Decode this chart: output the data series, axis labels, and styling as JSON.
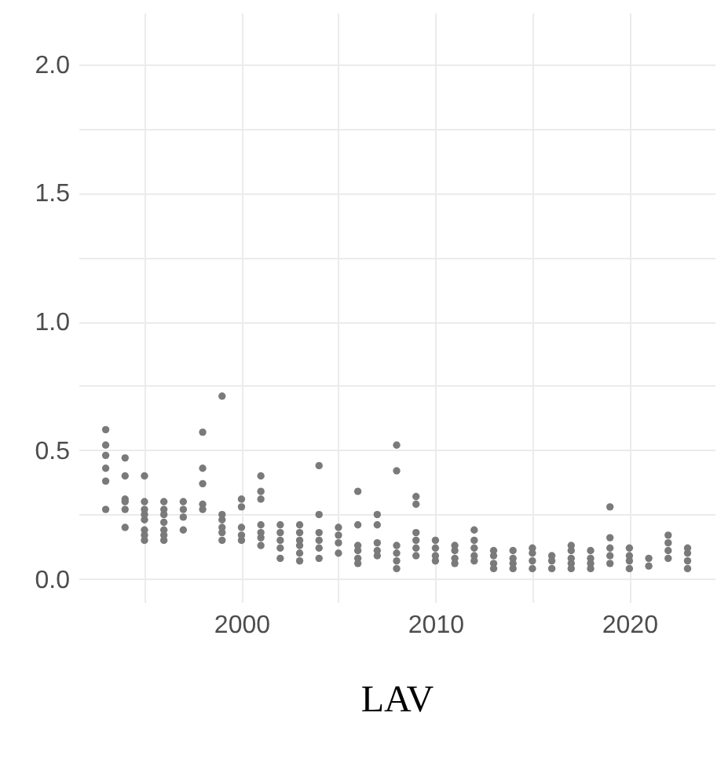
{
  "chart_data": {
    "type": "scatter",
    "xlabel": "LAV",
    "x": [
      1993,
      1993,
      1993,
      1993,
      1993,
      1993,
      1994,
      1994,
      1994,
      1994,
      1994,
      1994,
      1995,
      1995,
      1995,
      1995,
      1995,
      1995,
      1995,
      1995,
      1996,
      1996,
      1996,
      1996,
      1996,
      1996,
      1996,
      1997,
      1997,
      1997,
      1997,
      1998,
      1998,
      1998,
      1998,
      1998,
      1999,
      1999,
      1999,
      1999,
      1999,
      1999,
      2000,
      2000,
      2000,
      2000,
      2000,
      2001,
      2001,
      2001,
      2001,
      2001,
      2001,
      2001,
      2002,
      2002,
      2002,
      2002,
      2002,
      2003,
      2003,
      2003,
      2003,
      2003,
      2003,
      2004,
      2004,
      2004,
      2004,
      2004,
      2004,
      2005,
      2005,
      2005,
      2005,
      2006,
      2006,
      2006,
      2006,
      2006,
      2006,
      2007,
      2007,
      2007,
      2007,
      2007,
      2008,
      2008,
      2008,
      2008,
      2008,
      2008,
      2009,
      2009,
      2009,
      2009,
      2009,
      2009,
      2010,
      2010,
      2010,
      2010,
      2011,
      2011,
      2011,
      2011,
      2012,
      2012,
      2012,
      2012,
      2012,
      2013,
      2013,
      2013,
      2013,
      2014,
      2014,
      2014,
      2014,
      2015,
      2015,
      2015,
      2015,
      2016,
      2016,
      2016,
      2017,
      2017,
      2017,
      2017,
      2017,
      2018,
      2018,
      2018,
      2018,
      2019,
      2019,
      2019,
      2019,
      2019,
      2020,
      2020,
      2020,
      2020,
      2021,
      2021,
      2022,
      2022,
      2022,
      2022,
      2023,
      2023,
      2023,
      2023
    ],
    "series": [
      {
        "color": "#7a7a7a",
        "values": [
          0.58,
          0.52,
          0.48,
          0.43,
          0.38,
          0.27,
          0.47,
          0.4,
          0.31,
          0.3,
          0.27,
          0.2,
          0.4,
          0.3,
          0.27,
          0.25,
          0.23,
          0.19,
          0.17,
          0.15,
          0.3,
          0.27,
          0.25,
          0.22,
          0.19,
          0.17,
          0.15,
          0.3,
          0.27,
          0.24,
          0.19,
          0.57,
          0.43,
          0.37,
          0.29,
          0.27,
          0.71,
          0.25,
          0.23,
          0.2,
          0.18,
          0.15,
          0.31,
          0.28,
          0.2,
          0.17,
          0.15,
          0.4,
          0.34,
          0.31,
          0.21,
          0.18,
          0.16,
          0.13,
          0.21,
          0.18,
          0.15,
          0.12,
          0.08,
          0.21,
          0.18,
          0.15,
          0.13,
          0.1,
          0.07,
          0.44,
          0.25,
          0.18,
          0.15,
          0.12,
          0.08,
          0.2,
          0.17,
          0.14,
          0.1,
          0.34,
          0.21,
          0.13,
          0.11,
          0.08,
          0.06,
          0.25,
          0.21,
          0.14,
          0.11,
          0.09,
          0.52,
          0.42,
          0.13,
          0.1,
          0.07,
          0.04,
          0.32,
          0.29,
          0.18,
          0.15,
          0.12,
          0.09,
          0.15,
          0.12,
          0.09,
          0.07,
          0.13,
          0.11,
          0.08,
          0.06,
          0.19,
          0.15,
          0.12,
          0.09,
          0.07,
          0.11,
          0.09,
          0.06,
          0.04,
          0.11,
          0.08,
          0.06,
          0.04,
          0.12,
          0.1,
          0.07,
          0.04,
          0.09,
          0.07,
          0.04,
          0.13,
          0.11,
          0.08,
          0.06,
          0.04,
          0.11,
          0.08,
          0.06,
          0.04,
          0.28,
          0.16,
          0.12,
          0.09,
          0.06,
          0.12,
          0.09,
          0.07,
          0.04,
          0.08,
          0.05,
          0.17,
          0.14,
          0.11,
          0.08,
          0.12,
          0.1,
          0.07,
          0.04
        ]
      }
    ],
    "xlim": [
      1991.6,
      2024.4
    ],
    "xticks": [
      {
        "value": 1995,
        "label": null
      },
      2000,
      {
        "value": 2005,
        "label": null
      },
      2010,
      {
        "value": 2015,
        "label": null
      },
      2020
    ],
    "ylim": [
      -0.09,
      2.2
    ],
    "yticks": [
      {
        "value": 0,
        "label": "0.0"
      },
      {
        "value": 0.25,
        "label": null
      },
      {
        "value": 0.5,
        "label": "0.5"
      },
      {
        "value": 0.75,
        "label": null
      },
      {
        "value": 1,
        "label": "1.0"
      },
      {
        "value": 1.25,
        "label": null
      },
      {
        "value": 1.5,
        "label": "1.5"
      },
      {
        "value": 1.75,
        "label": null
      },
      {
        "value": 2,
        "label": "2.0"
      }
    ],
    "grid": true,
    "marker": "circle"
  }
}
